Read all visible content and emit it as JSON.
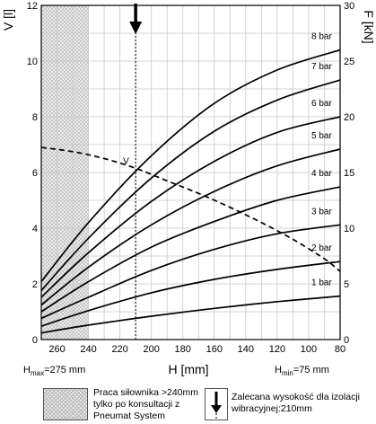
{
  "chart_data": {
    "type": "line",
    "xlabel": "H [mm]",
    "ylabel_left": "V [l]",
    "ylabel_right": "F [kN]",
    "x_reversed": true,
    "xlim": [
      80,
      270
    ],
    "ylim_left": [
      0,
      12
    ],
    "ylim_right": [
      0,
      30
    ],
    "x_ticks": [
      260,
      240,
      220,
      200,
      180,
      160,
      140,
      120,
      100,
      80
    ],
    "y_ticks_left": [
      0,
      2,
      4,
      6,
      8,
      10,
      12
    ],
    "y_ticks_right": [
      0,
      5,
      10,
      15,
      20,
      25,
      30
    ],
    "grid": true,
    "shaded_region": {
      "from_x": 270,
      "to_x": 240
    },
    "recommended_height_line_x": 210,
    "h_max_label": "H",
    "h_max_sub": "max",
    "h_max_value": "=275 mm",
    "h_min_label": "H",
    "h_min_sub": "min",
    "h_min_value": "=75 mm",
    "volume_curve": {
      "label": "V",
      "axis": "left",
      "x": [
        270,
        250,
        230,
        210,
        190,
        170,
        150,
        130,
        110,
        90,
        80
      ],
      "y": [
        6.9,
        6.75,
        6.5,
        6.15,
        5.7,
        5.25,
        4.75,
        4.2,
        3.6,
        2.9,
        2.45
      ]
    },
    "series": [
      {
        "name": "1 bar",
        "axis": "right",
        "x": [
          270,
          240,
          200,
          160,
          120,
          80
        ],
        "y": [
          0.6,
          1.3,
          2.1,
          2.8,
          3.4,
          3.9
        ]
      },
      {
        "name": "2 bar",
        "axis": "right",
        "x": [
          270,
          240,
          200,
          160,
          120,
          80
        ],
        "y": [
          1.2,
          2.6,
          4.2,
          5.4,
          6.3,
          7.0
        ]
      },
      {
        "name": "3 bar",
        "axis": "right",
        "x": [
          270,
          240,
          200,
          160,
          120,
          80
        ],
        "y": [
          1.9,
          3.8,
          6.2,
          8.1,
          9.5,
          10.3
        ]
      },
      {
        "name": "4 bar",
        "axis": "right",
        "x": [
          270,
          240,
          200,
          160,
          120,
          80
        ],
        "y": [
          2.5,
          5.2,
          8.3,
          10.6,
          12.5,
          13.7
        ]
      },
      {
        "name": "5 bar",
        "axis": "right",
        "x": [
          270,
          240,
          200,
          160,
          120,
          80
        ],
        "y": [
          3.1,
          6.5,
          10.3,
          13.3,
          15.6,
          17.1
        ]
      },
      {
        "name": "6 bar",
        "axis": "right",
        "x": [
          270,
          240,
          200,
          160,
          120,
          80
        ],
        "y": [
          3.8,
          7.8,
          12.4,
          16.0,
          18.6,
          20.0
        ]
      },
      {
        "name": "7 bar",
        "axis": "right",
        "x": [
          270,
          240,
          200,
          160,
          120,
          80
        ],
        "y": [
          4.4,
          9.1,
          14.5,
          18.7,
          21.5,
          23.3
        ]
      },
      {
        "name": "8 bar",
        "axis": "right",
        "x": [
          270,
          240,
          200,
          160,
          120,
          80
        ],
        "y": [
          5.2,
          10.5,
          16.5,
          21.2,
          24.2,
          26.0
        ]
      }
    ]
  },
  "legend": {
    "shaded_text": "Praca siłownika >240mm tylko po konsultacji z Pneumat System",
    "arrow_text": "Zalecana wysokość dla izolacji wibracyjnej:210mm"
  }
}
